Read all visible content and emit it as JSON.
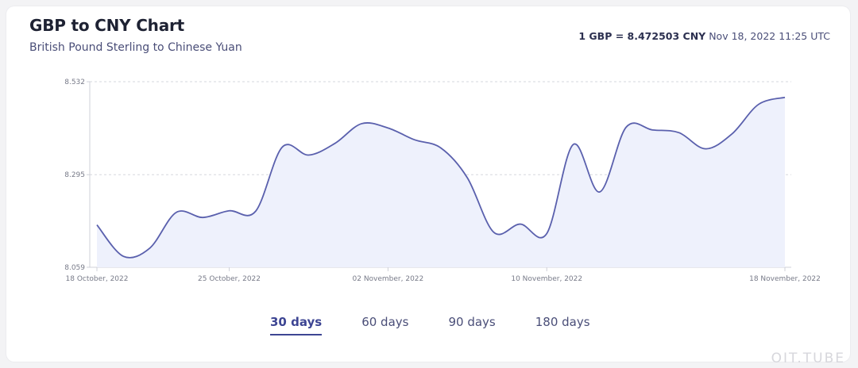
{
  "header": {
    "title": "GBP to CNY Chart",
    "subtitle": "British Pound Sterling to Chinese Yuan",
    "rate_bold": "1 GBP = 8.472503 CNY",
    "rate_time": "Nov 18, 2022 11:25 UTC"
  },
  "tabs": [
    {
      "label": "30 days",
      "active": true
    },
    {
      "label": "60 days",
      "active": false
    },
    {
      "label": "90 days",
      "active": false
    },
    {
      "label": "180 days",
      "active": false
    }
  ],
  "watermark": "OIT.TUBE",
  "colors": {
    "line": "#5a60ad",
    "fill": "#eef1fc",
    "accent": "#3d4593"
  },
  "chart_data": {
    "type": "area",
    "title": "GBP to CNY Chart",
    "subtitle": "British Pound Sterling to Chinese Yuan",
    "xlabel": "",
    "ylabel": "",
    "yticks": [
      "8.532",
      "8.295",
      "8.059"
    ],
    "ylim": [
      8.059,
      8.532
    ],
    "xticks": [
      "18 October, 2022",
      "25 October, 2022",
      "02 November, 2022",
      "10 November, 2022",
      "18 November, 2022"
    ],
    "grid": true,
    "series": [
      {
        "values": [
          8.167,
          8.087,
          8.108,
          8.199,
          8.186,
          8.203,
          8.202,
          8.365,
          8.345,
          8.375,
          8.425,
          8.414,
          8.384,
          8.363,
          8.287,
          8.148,
          8.169,
          8.145,
          8.372,
          8.251,
          8.416,
          8.409,
          8.402,
          8.361,
          8.399,
          8.474,
          8.492
        ]
      }
    ]
  }
}
